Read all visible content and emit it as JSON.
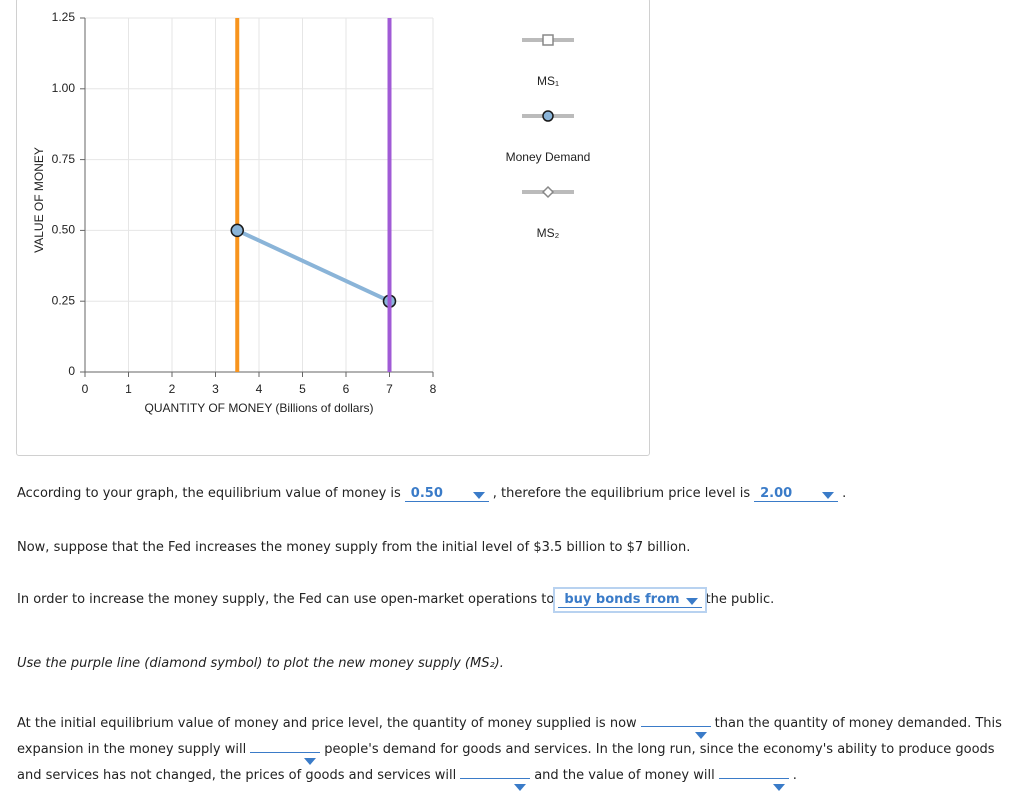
{
  "chart_data": {
    "type": "line",
    "xlabel": "QUANTITY OF MONEY (Billions of dollars)",
    "ylabel": "VALUE OF MONEY",
    "xlim": [
      0,
      8
    ],
    "xticks": [
      0,
      1,
      2,
      3,
      4,
      5,
      6,
      7,
      8
    ],
    "ylim": [
      0,
      1.25
    ],
    "yticks": [
      0,
      0.25,
      {
        "value": 0.5,
        "label": "0.50"
      },
      0.75,
      {
        "value": 1,
        "label": "1.00"
      },
      1.25
    ],
    "grid": true,
    "series": [
      {
        "name": "MS₁",
        "color": "#f7941d",
        "marker": "square",
        "markers": false,
        "x": [
          3.5,
          3.5
        ],
        "values": [
          0,
          1.25
        ]
      },
      {
        "name": "Money Demand",
        "color": "#8ab4d8",
        "marker": "circle",
        "markers": true,
        "x": [
          3.5,
          7
        ],
        "values": [
          0.5,
          0.25
        ]
      },
      {
        "name": "MS₂",
        "color": "#a05bd6",
        "marker": "diamond",
        "markers": false,
        "x": [
          7,
          7
        ],
        "values": [
          0,
          1.25
        ]
      }
    ]
  },
  "q1": {
    "a": "According to your graph, the equilibrium value of money is",
    "d1": "0.50",
    "b": ", therefore the equilibrium price level is",
    "d2": "2.00",
    "c": "."
  },
  "q2": "Now, suppose that the Fed increases the money supply from the initial level of $3.5 billion to $7 billion.",
  "q3": {
    "a": "In order to increase the money supply, the Fed can use open-market operations to",
    "d1": "buy bonds from",
    "b": "the public."
  },
  "q4": "Use the purple line (diamond symbol) to plot the new money supply (MS₂).",
  "q5": {
    "a": "At the initial equilibrium value of money and price level, the quantity of money supplied is now",
    "b": "than the quantity of money demanded. This expansion in the money supply will",
    "c": "people's demand for goods and services. In the long run, since the economy's ability to produce goods and services has not changed, the prices of goods and services will",
    "d": "and the value of money will",
    "e": "."
  }
}
